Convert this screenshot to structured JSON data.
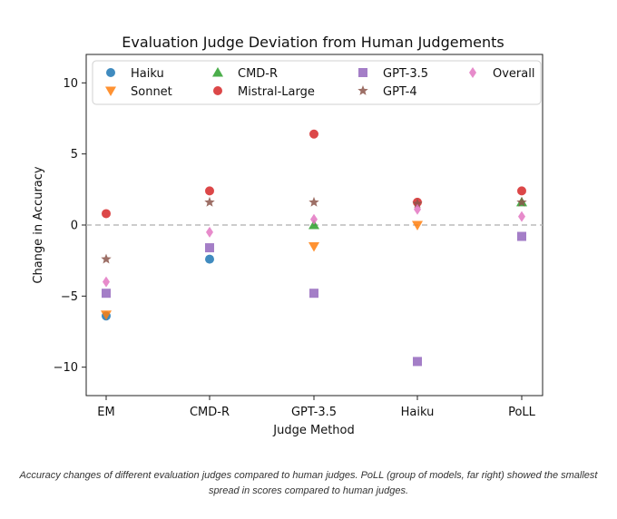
{
  "caption": "Accuracy changes of different evaluation judges compared to human judges. PoLL (group of models, far right) showed the smallest spread in scores compared to human judges.",
  "chart_data": {
    "type": "scatter",
    "title": "Evaluation Judge Deviation from Human Judgements",
    "xlabel": "Judge Method",
    "ylabel": "Change in Accuracy",
    "categories": [
      "EM",
      "CMD-R",
      "GPT-3.5",
      "Haiku",
      "PoLL"
    ],
    "ylim": [
      -12,
      12
    ],
    "yticks": [
      10,
      5,
      0,
      -5,
      -10
    ],
    "reference_line": {
      "y": 0,
      "style": "dashed",
      "color": "#bbbbbb"
    },
    "legend_position": "top",
    "grid": false,
    "series": [
      {
        "name": "Haiku",
        "marker": "circle",
        "color": "#1f77b4",
        "values": [
          -6.4,
          -2.4,
          null,
          null,
          null
        ]
      },
      {
        "name": "Sonnet",
        "marker": "triangle-down",
        "color": "#ff7f0e",
        "values": [
          -6.3,
          null,
          -1.5,
          0.0,
          null
        ]
      },
      {
        "name": "CMD-R",
        "marker": "triangle-up",
        "color": "#2ca02c",
        "values": [
          null,
          null,
          0.0,
          null,
          1.6
        ]
      },
      {
        "name": "Mistral-Large",
        "marker": "circle",
        "color": "#d62728",
        "values": [
          0.8,
          2.4,
          6.4,
          1.6,
          2.4
        ]
      },
      {
        "name": "GPT-3.5",
        "marker": "square",
        "color": "#9467bd",
        "values": [
          -4.8,
          -1.6,
          -4.8,
          -9.6,
          -0.8
        ]
      },
      {
        "name": "GPT-4",
        "marker": "star",
        "color": "#8c564b",
        "values": [
          -2.4,
          1.6,
          1.6,
          1.5,
          1.6
        ]
      },
      {
        "name": "Overall",
        "marker": "diamond",
        "color": "#e377c2",
        "values": [
          -4.0,
          -0.5,
          0.4,
          1.1,
          0.6
        ]
      }
    ]
  }
}
